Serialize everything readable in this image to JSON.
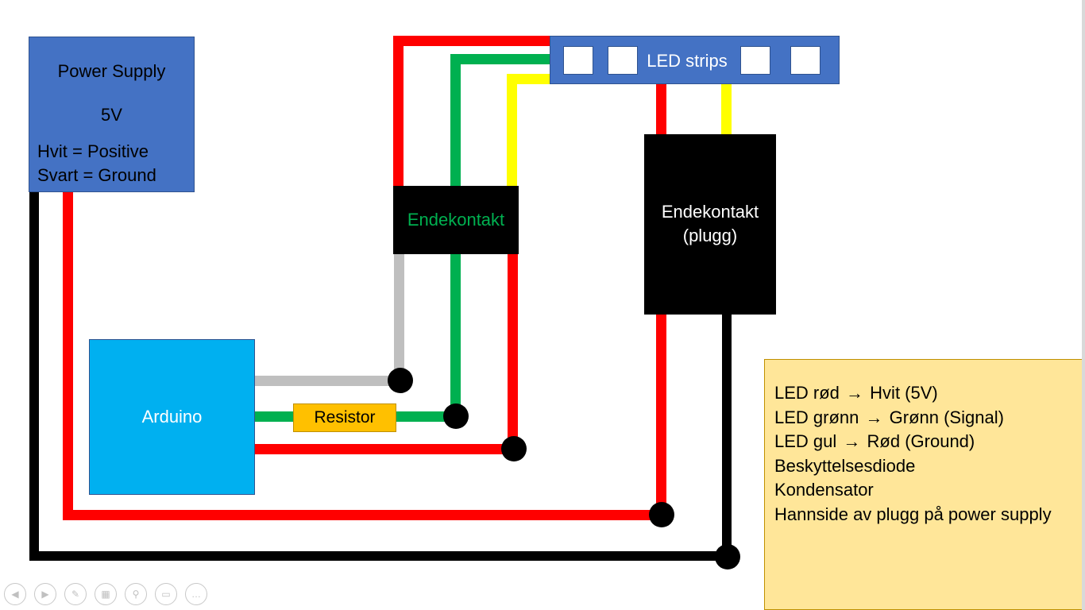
{
  "colors": {
    "red": "#ff0000",
    "black": "#000000",
    "green": "#00b050",
    "yellow": "#ffff00",
    "gray": "#bfbfbf",
    "box_blue": "#4472c4",
    "arduino_blue": "#00b0f0",
    "resistor_orange": "#ffc000",
    "legend_yellow": "#ffe699"
  },
  "power_supply": {
    "title": "Power Supply",
    "voltage": "5V",
    "line1": "Hvit = Positive",
    "line2": "Svart = Ground"
  },
  "led_strips": {
    "label": "LED strips",
    "square_count": 4
  },
  "connector_1": {
    "label": "Endekontakt"
  },
  "connector_2": {
    "line1": "Endekontakt",
    "line2": "(plugg)"
  },
  "arduino": {
    "label": "Arduino"
  },
  "resistor": {
    "label": "Resistor"
  },
  "legend": {
    "lines": [
      {
        "left": "LED rød",
        "right": "Hvit (5V)"
      },
      {
        "left": "LED grønn",
        "right": "Grønn (Signal)"
      },
      {
        "left": "LED gul",
        "right": "Rød (Ground)"
      },
      {
        "left": "Beskyttelsesdiode",
        "right": ""
      },
      {
        "left": "Kondensator",
        "right": ""
      },
      {
        "left": "Hannside av plugg på power supply",
        "right": ""
      }
    ]
  },
  "slideshow_controls": [
    {
      "name": "previous-icon",
      "glyph": "◀"
    },
    {
      "name": "next-icon",
      "glyph": "▶"
    },
    {
      "name": "pen-icon",
      "glyph": "✎"
    },
    {
      "name": "slides-icon",
      "glyph": "▦"
    },
    {
      "name": "zoom-icon",
      "glyph": "⚲"
    },
    {
      "name": "subtitles-icon",
      "glyph": "▭"
    },
    {
      "name": "more-icon",
      "glyph": "…"
    }
  ]
}
